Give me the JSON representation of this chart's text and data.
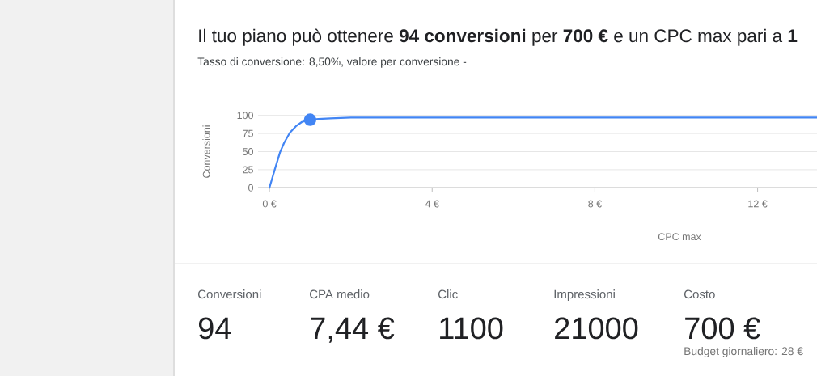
{
  "chart_data": [
    {
      "type": "line",
      "title": "Il tuo piano può ottenere **94 conversioni** per **700 €** e un CPC max pari a **1**",
      "subtitle": "Tasso di conversione: 8,50%, valore per conversione -",
      "xlabel": "CPC max",
      "ylabel": "Conversioni",
      "xlim": [
        -0.28,
        13.46
      ],
      "ylim": [
        0,
        100
      ],
      "xticks": [
        {
          "value": 0,
          "label": "0 €"
        },
        {
          "value": 4,
          "label": "4 €"
        },
        {
          "value": 8,
          "label": "8 €"
        },
        {
          "value": 12,
          "label": "12 €"
        }
      ],
      "yticks": [
        0,
        25,
        50,
        75,
        100
      ],
      "grid": "y",
      "line_style": "solid",
      "series": [
        {
          "type": "line",
          "color": "#4285f4",
          "x": [
            0,
            0.13,
            0.26,
            0.36,
            0.5,
            0.65,
            0.8,
            1.0,
            1.2,
            1.5,
            2,
            4,
            8,
            13.46
          ],
          "values": [
            0,
            25,
            49,
            62,
            76,
            85,
            91,
            94,
            95,
            96,
            97,
            97,
            97,
            97
          ]
        },
        {
          "type": "scatter",
          "color": "#4285f4",
          "marker": "circle",
          "x": [
            1
          ],
          "values": [
            94
          ]
        }
      ]
    },
    {
      "type": "other",
      "categories": [
        "Conversioni",
        "CPA medio",
        "Clic",
        "Impressioni",
        "Costo"
      ],
      "value_labels": [
        "94",
        "7,44 €",
        "1100",
        "21000",
        "700 €"
      ],
      "annotations": [
        "Budget giornaliero: 28 €"
      ]
    }
  ]
}
